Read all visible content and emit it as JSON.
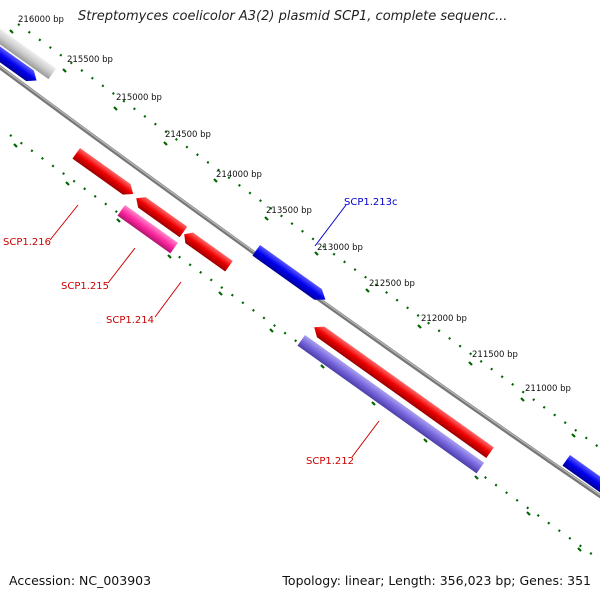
{
  "title": "Streptomyces coelicolor A3(2) plasmid SCP1, complete sequenc...",
  "footer": {
    "accession": "Accession: NC_003903",
    "summary": "Topology: linear; Length: 356,023 bp; Genes: 351"
  },
  "ticks": [
    {
      "label": "216000 bp"
    },
    {
      "label": "215500 bp"
    },
    {
      "label": "215000 bp"
    },
    {
      "label": "214500 bp"
    },
    {
      "label": "214000 bp"
    },
    {
      "label": "213500 bp"
    },
    {
      "label": "213000 bp"
    },
    {
      "label": "212500 bp"
    },
    {
      "label": "212000 bp"
    },
    {
      "label": "211500 bp"
    },
    {
      "label": "211000 bp"
    }
  ],
  "genes": [
    {
      "label": "SCP1.216",
      "color": "#cc0000"
    },
    {
      "label": "SCP1.215",
      "color": "#cc0000"
    },
    {
      "label": "SCP1.214",
      "color": "#cc0000"
    },
    {
      "label": "SCP1.213c",
      "color": "#0000cc"
    },
    {
      "label": "SCP1.212",
      "color": "#cc0000"
    }
  ],
  "colors": {
    "red_feature": "#ee0000",
    "pink_feature": "#ff33aa",
    "blue_feature": "#0000ee",
    "lavender_feature": "#7766dd",
    "grey_feature": "#cccccc",
    "backbone": "#777777",
    "tick": "#006600"
  }
}
